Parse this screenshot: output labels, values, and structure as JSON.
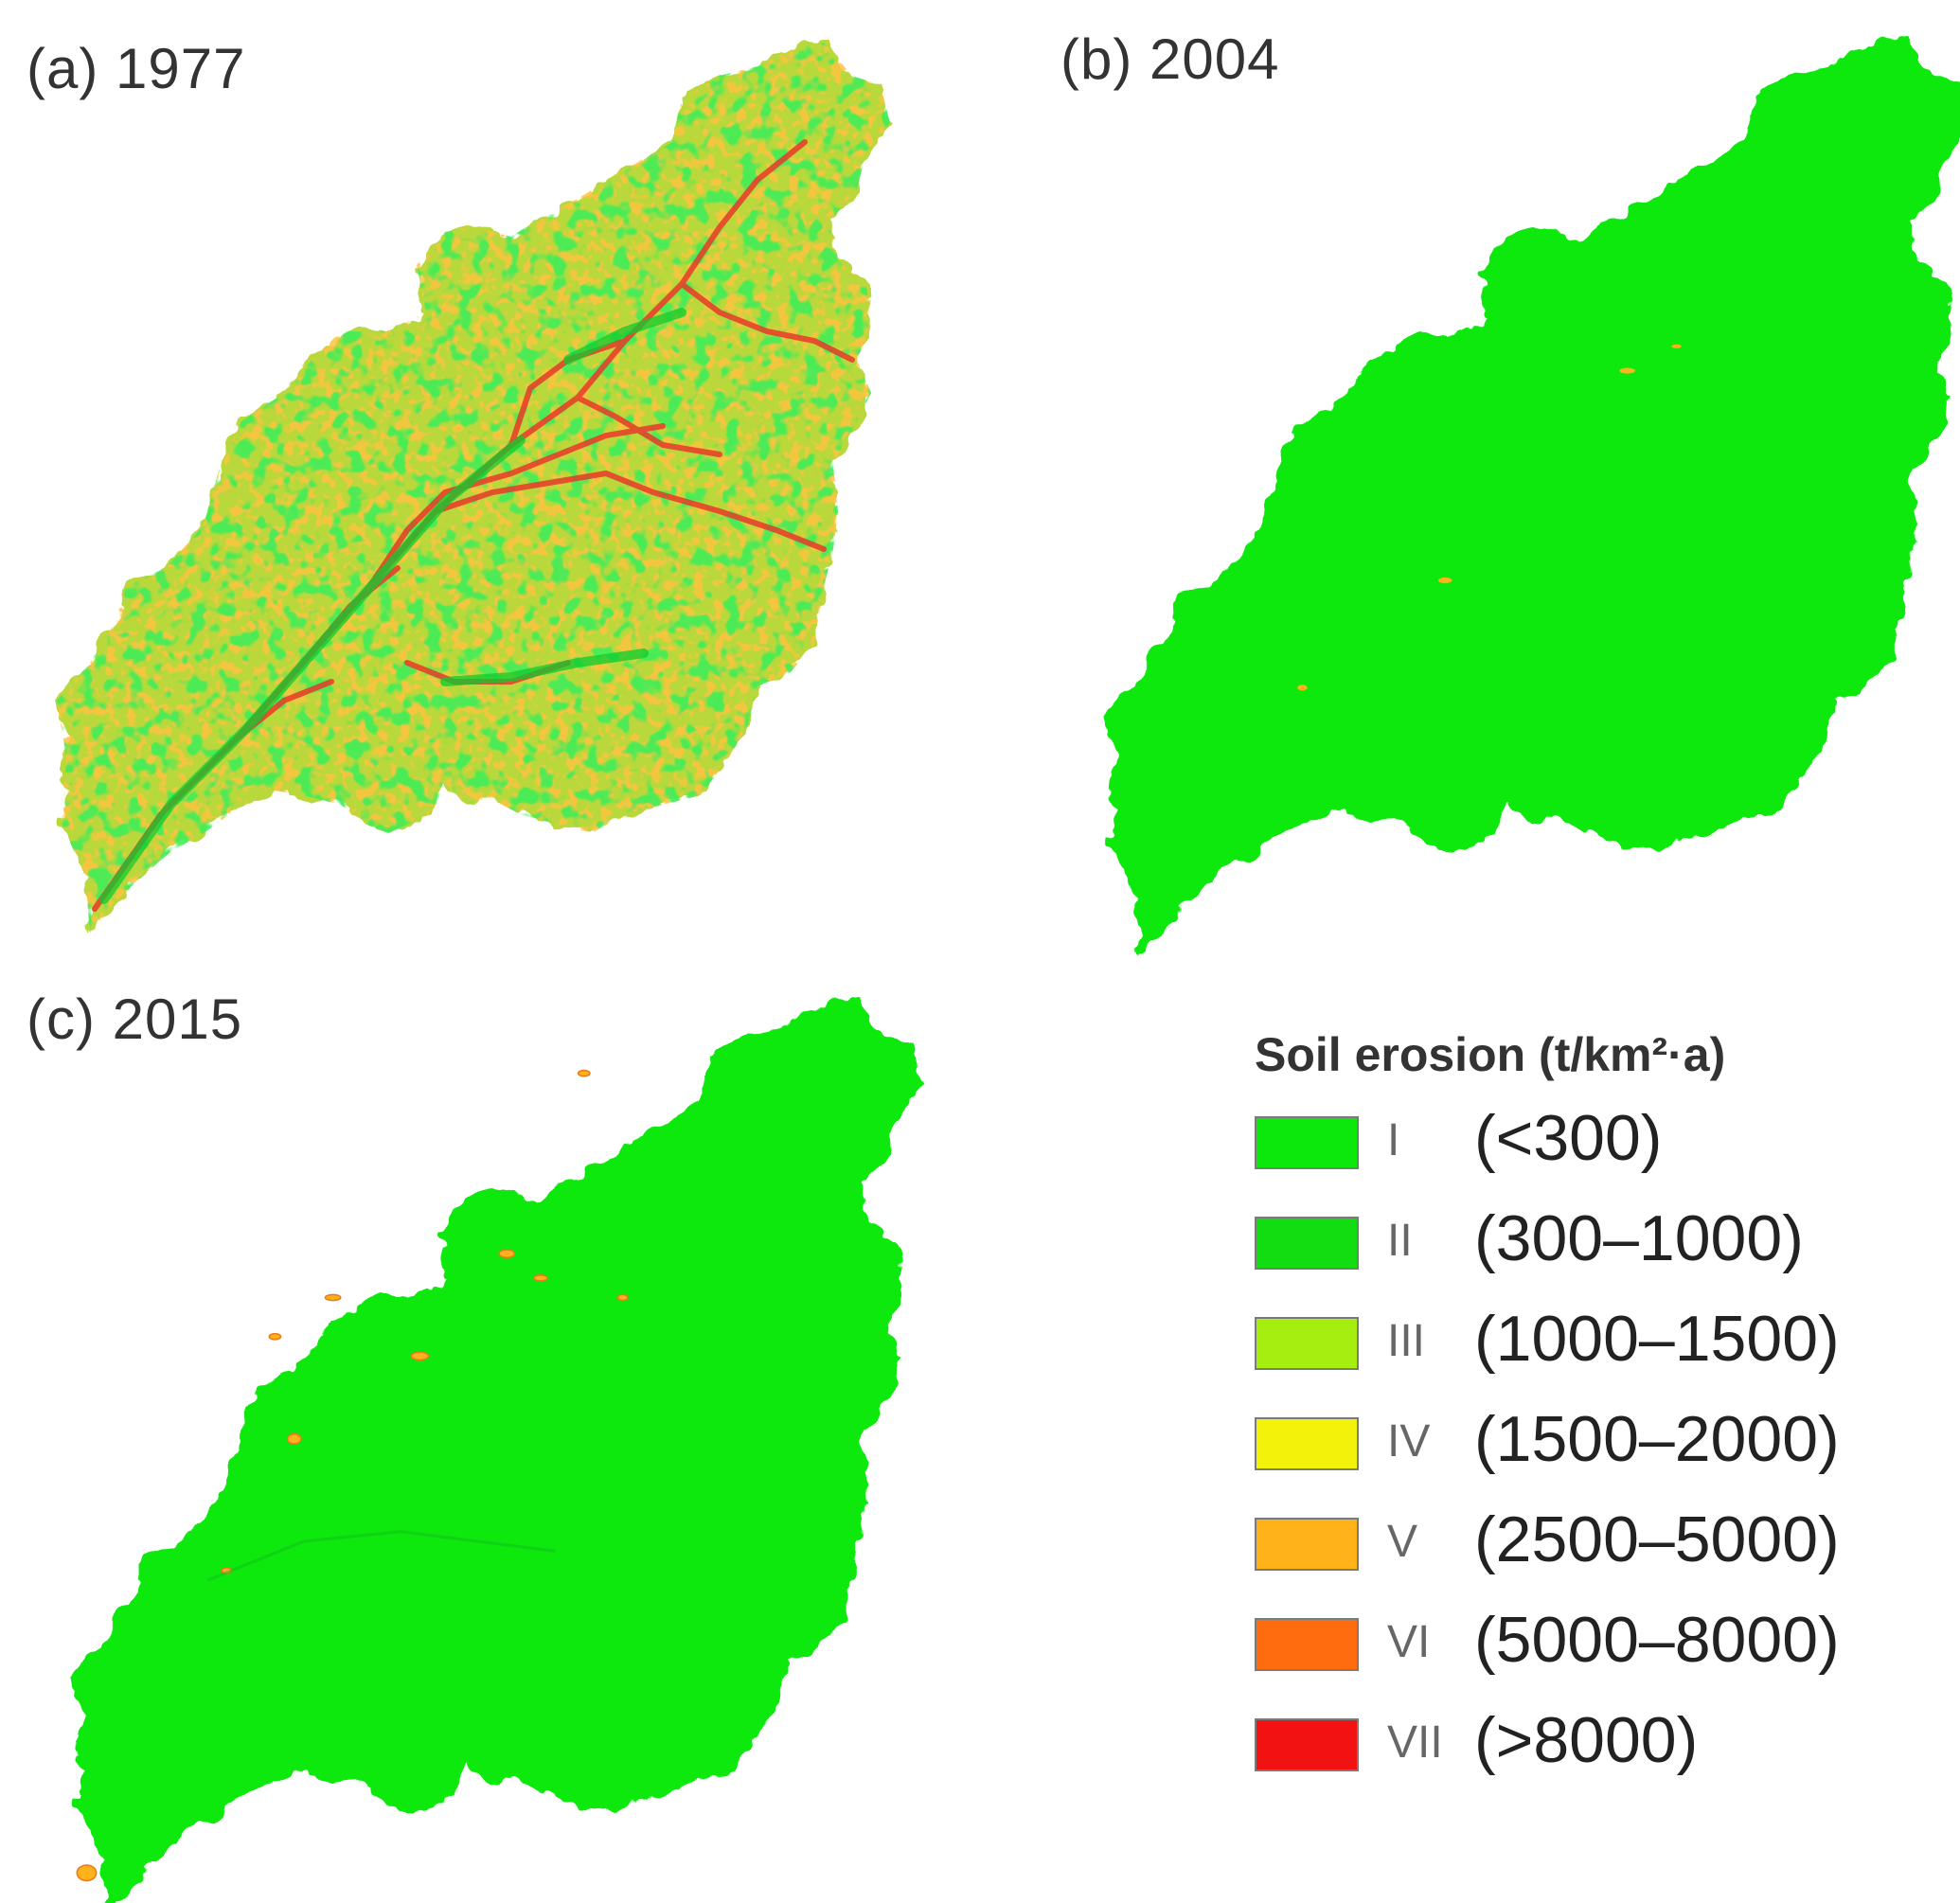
{
  "panels": [
    {
      "title": "(a) 1977"
    },
    {
      "title": "(b) 2004"
    },
    {
      "title": "(c) 2015"
    }
  ],
  "legend": {
    "title": "Soil erosion (t/km²·a)",
    "classes": [
      {
        "grade": "I",
        "range": "(<300)",
        "color": "#0ce80c"
      },
      {
        "grade": "II",
        "range": "(300–1000)",
        "color": "#11dd11"
      },
      {
        "grade": "III",
        "range": "(1000–1500)",
        "color": "#a6ee10"
      },
      {
        "grade": "IV",
        "range": "(1500–2000)",
        "color": "#f2f20a"
      },
      {
        "grade": "V",
        "range": "(2500–5000)",
        "color": "#ffb21a"
      },
      {
        "grade": "VI",
        "range": "(5000–8000)",
        "color": "#ff6c10"
      },
      {
        "grade": "VII",
        "range": "(>8000)",
        "color": "#f21212"
      }
    ]
  },
  "colors": {
    "map_base_green": "#0ce80c",
    "map_1977_mix": "#b8d83a",
    "channel_red": "#e83a2a"
  }
}
